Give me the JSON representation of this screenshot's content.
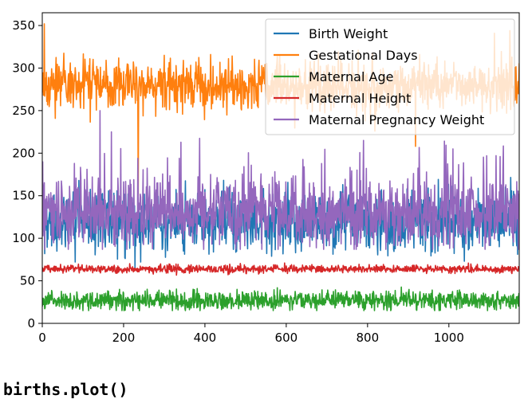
{
  "chart_data": {
    "type": "line",
    "title": "",
    "xlabel": "",
    "ylabel": "",
    "xlim": [
      0,
      1173
    ],
    "ylim": [
      0,
      365
    ],
    "x_ticks": [
      0,
      200,
      400,
      600,
      800,
      1000
    ],
    "y_ticks": [
      0,
      50,
      100,
      150,
      200,
      250,
      300,
      350
    ],
    "legend_position": "top-right",
    "n_points": 1174,
    "series": [
      {
        "name": "Birth Weight",
        "color": "#1f77b4",
        "approx_mean": 120,
        "approx_range": [
          55,
          176
        ]
      },
      {
        "name": "Gestational Days",
        "color": "#ff7f0e",
        "approx_mean": 279,
        "approx_range": [
          148,
          353
        ]
      },
      {
        "name": "Maternal Age",
        "color": "#2ca02c",
        "approx_mean": 27,
        "approx_range": [
          15,
          45
        ]
      },
      {
        "name": "Maternal Height",
        "color": "#d62728",
        "approx_mean": 64,
        "approx_range": [
          53,
          72
        ]
      },
      {
        "name": "Maternal Pregnancy Weight",
        "color": "#9467bd",
        "approx_mean": 129,
        "approx_range": [
          87,
          250
        ]
      }
    ]
  },
  "code_cell": {
    "text": "births.plot()"
  }
}
